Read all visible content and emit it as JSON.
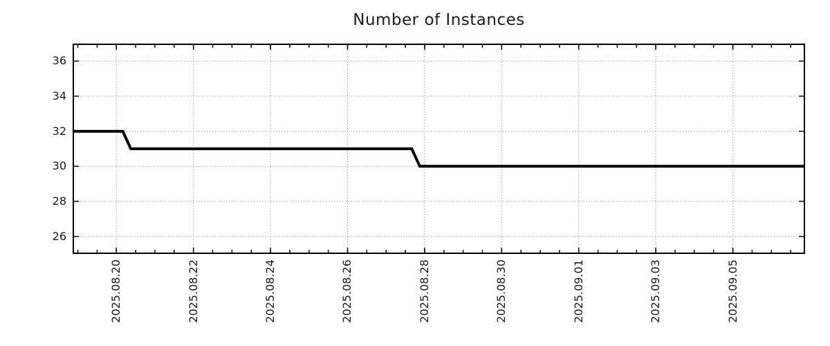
{
  "page": {
    "background": "#ffffff"
  },
  "chart_data": {
    "type": "line",
    "title": "Number of Instances",
    "xlabel": "",
    "ylabel": "",
    "legend": "none",
    "grid": "dotted",
    "colors": {
      "line": "#000000",
      "grid": "#9e9e9e",
      "axis": "#000000",
      "text": "#1c1c1c"
    },
    "x_axis": {
      "start": "2025-08-18 20:45",
      "end": "2025-09-06 21:00",
      "minor_tick_interval_hours": 12,
      "label_rotation_deg": 90,
      "major_ticks": [
        {
          "date": "2025-08-20 00:00",
          "label": "2025.08.20"
        },
        {
          "date": "2025-08-22 00:00",
          "label": "2025.08.22"
        },
        {
          "date": "2025-08-24 00:00",
          "label": "2025.08.24"
        },
        {
          "date": "2025-08-26 00:00",
          "label": "2025.08.26"
        },
        {
          "date": "2025-08-28 00:00",
          "label": "2025.08.28"
        },
        {
          "date": "2025-08-30 00:00",
          "label": "2025.08.30"
        },
        {
          "date": "2025-09-01 00:00",
          "label": "2025.09.01"
        },
        {
          "date": "2025-09-03 00:00",
          "label": "2025.09.03"
        },
        {
          "date": "2025-09-05 00:00",
          "label": "2025.09.05"
        }
      ]
    },
    "y_axis": {
      "min": 25,
      "max": 37,
      "ticks": [
        26,
        28,
        30,
        32,
        34,
        36
      ]
    },
    "series": [
      {
        "name": "instances",
        "color": "#000000",
        "width": 4,
        "points": [
          {
            "t": "2025-08-18 20:45",
            "v": 32
          },
          {
            "t": "2025-08-20 04:00",
            "v": 32
          },
          {
            "t": "2025-08-20 09:00",
            "v": 31
          },
          {
            "t": "2025-08-27 16:00",
            "v": 31
          },
          {
            "t": "2025-08-27 21:00",
            "v": 30
          },
          {
            "t": "2025-09-06 21:00",
            "v": 30
          }
        ]
      }
    ]
  }
}
